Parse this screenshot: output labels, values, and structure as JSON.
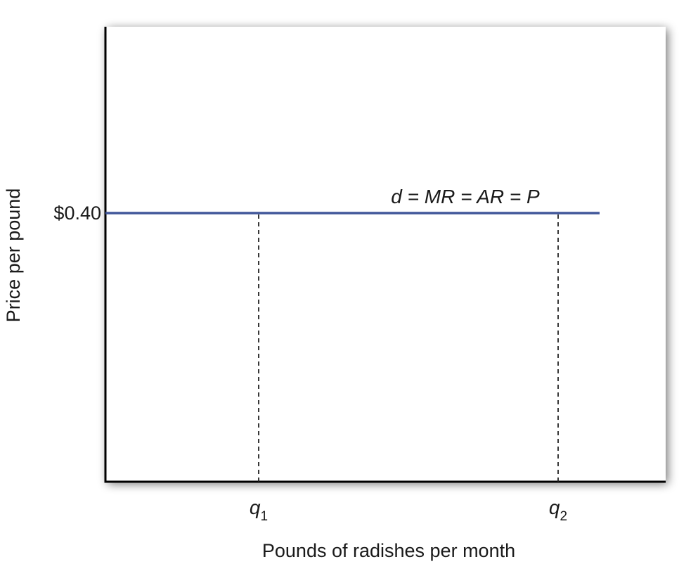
{
  "chart_data": {
    "type": "line",
    "xlabel": "Pounds of radishes per month",
    "ylabel": "Price per pound",
    "y_ticks": [
      {
        "value": 0.4,
        "label": "$0.40"
      }
    ],
    "x_markers": [
      {
        "id": "q1",
        "base": "q",
        "sub": "1"
      },
      {
        "id": "q2",
        "base": "q",
        "sub": "2"
      }
    ],
    "series": [
      {
        "name": "d = MR = AR = P",
        "style": "horizontal-line",
        "y": 0.4,
        "color": "#40579a"
      }
    ],
    "marker_line_style": "dashed",
    "grid": false,
    "colors": {
      "axis": "#000000",
      "line": "#40579a",
      "marker": "#222222",
      "plot_background": "#ffffff"
    }
  }
}
